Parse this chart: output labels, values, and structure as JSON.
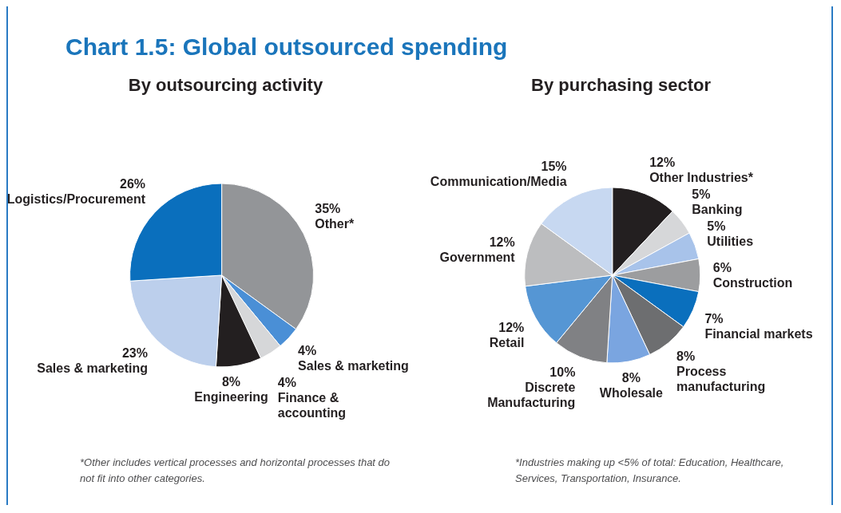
{
  "chart_data": [
    {
      "type": "pie",
      "title": "Chart 1.5: Global outsourced spending",
      "subtitle": "By outsourcing activity",
      "categories": [
        "Other*",
        "Sales & marketing",
        "Finance & accounting",
        "Engineering",
        "Sales & marketing",
        "Logistics/Procurement"
      ],
      "values": [
        35,
        4,
        4,
        8,
        23,
        26
      ],
      "colors": [
        "#939598",
        "#4a8fd6",
        "#d6d7d9",
        "#231f20",
        "#bccfec",
        "#0a6fbd"
      ],
      "value_labels": [
        "35%",
        "4%",
        "4%",
        "8%",
        "23%",
        "26%"
      ],
      "legend": false,
      "annotations": [
        "*Other includes vertical processes and horizontal processes that do not fit into other categories."
      ]
    },
    {
      "type": "pie",
      "subtitle": "By purchasing sector",
      "categories": [
        "Other Industries*",
        "Banking",
        "Utilities",
        "Construction",
        "Financial markets",
        "Process manufacturing",
        "Wholesale",
        "Discrete Manufacturing",
        "Retail",
        "Government",
        "Communication/Media"
      ],
      "values": [
        12,
        5,
        5,
        6,
        7,
        8,
        8,
        10,
        12,
        12,
        15
      ],
      "colors": [
        "#231f20",
        "#d6d7d9",
        "#a8c3ea",
        "#9c9d9f",
        "#0a6fbd",
        "#6d6e70",
        "#7aa5e0",
        "#808184",
        "#5596d4",
        "#bcbdbf",
        "#c7d8f1"
      ],
      "value_labels": [
        "12%",
        "5%",
        "5%",
        "6%",
        "7%",
        "8%",
        "8%",
        "10%",
        "12%",
        "12%",
        "15%"
      ],
      "legend": false,
      "annotations": [
        "*Industries making up <5% of total: Education, Healthcare, Services, Transportation, Insurance."
      ]
    }
  ]
}
